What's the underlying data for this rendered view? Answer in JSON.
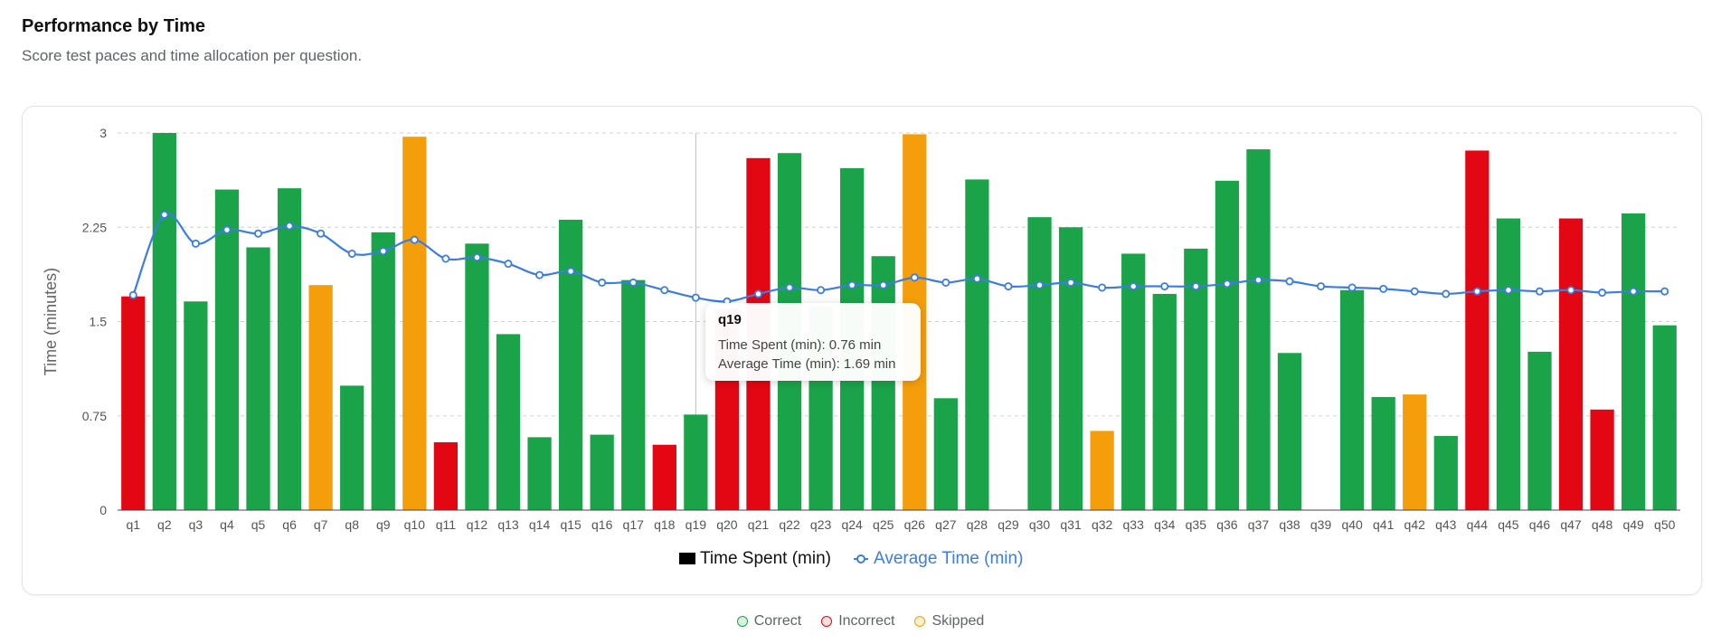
{
  "header": {
    "title": "Performance by Time",
    "subtitle": "Score test paces and time allocation per question."
  },
  "chart_data": {
    "type": "bar",
    "ylabel": "Time (minutes)",
    "ylim": [
      0,
      3
    ],
    "yticks": [
      0,
      0.75,
      1.5,
      2.25,
      3
    ],
    "ytick_labels": [
      "0",
      "0.75",
      "1.5",
      "2.25",
      "3"
    ],
    "categories": [
      "q1",
      "q2",
      "q3",
      "q4",
      "q5",
      "q6",
      "q7",
      "q8",
      "q9",
      "q10",
      "q11",
      "q12",
      "q13",
      "q14",
      "q15",
      "q16",
      "q17",
      "q18",
      "q19",
      "q20",
      "q21",
      "q22",
      "q23",
      "q24",
      "q25",
      "q26",
      "q27",
      "q28",
      "q29",
      "q30",
      "q31",
      "q32",
      "q33",
      "q34",
      "q35",
      "q36",
      "q37",
      "q38",
      "q39",
      "q40",
      "q41",
      "q42",
      "q43",
      "q44",
      "q45",
      "q46",
      "q47",
      "q48",
      "q49",
      "q50"
    ],
    "series": [
      {
        "name": "Time Spent (min)",
        "kind": "bar",
        "values": [
          1.7,
          3.0,
          1.66,
          2.55,
          2.09,
          2.56,
          1.79,
          0.99,
          2.21,
          2.97,
          0.54,
          2.12,
          1.4,
          0.58,
          2.31,
          0.6,
          1.83,
          0.52,
          0.76,
          1.6,
          2.8,
          2.84,
          1.62,
          2.72,
          2.02,
          2.99,
          0.89,
          2.63,
          0,
          2.33,
          2.25,
          0.63,
          2.04,
          1.72,
          2.08,
          2.62,
          2.87,
          1.25,
          0,
          1.75,
          0.9,
          0.92,
          0.59,
          2.86,
          2.32,
          1.26,
          2.32,
          0.8,
          2.36,
          1.47
        ],
        "status": [
          "incorrect",
          "correct",
          "correct",
          "correct",
          "correct",
          "correct",
          "skipped",
          "correct",
          "correct",
          "skipped",
          "incorrect",
          "correct",
          "correct",
          "correct",
          "correct",
          "correct",
          "correct",
          "incorrect",
          "correct",
          "incorrect",
          "incorrect",
          "correct",
          "correct",
          "correct",
          "correct",
          "skipped",
          "correct",
          "correct",
          "correct",
          "correct",
          "correct",
          "skipped",
          "correct",
          "correct",
          "correct",
          "correct",
          "correct",
          "correct",
          "correct",
          "correct",
          "correct",
          "skipped",
          "correct",
          "incorrect",
          "correct",
          "correct",
          "incorrect",
          "incorrect",
          "correct",
          "correct"
        ]
      },
      {
        "name": "Average Time (min)",
        "kind": "line",
        "values": [
          1.71,
          2.35,
          2.12,
          2.23,
          2.2,
          2.26,
          2.2,
          2.04,
          2.06,
          2.15,
          2.0,
          2.01,
          1.96,
          1.87,
          1.9,
          1.81,
          1.81,
          1.75,
          1.69,
          1.66,
          1.72,
          1.77,
          1.75,
          1.79,
          1.79,
          1.85,
          1.81,
          1.84,
          1.78,
          1.79,
          1.81,
          1.77,
          1.78,
          1.78,
          1.78,
          1.8,
          1.83,
          1.82,
          1.78,
          1.77,
          1.76,
          1.74,
          1.72,
          1.74,
          1.75,
          1.74,
          1.75,
          1.73,
          1.74,
          1.74
        ]
      }
    ],
    "colors": {
      "correct": "#1ba34a",
      "incorrect": "#e30613",
      "skipped": "#f59e0b",
      "line": "#3b7de0"
    },
    "legend": [
      "Time Spent (min)",
      "Average Time (min)"
    ],
    "hover_category": "q19"
  },
  "tooltip": {
    "title": "q19",
    "time_spent": "Time Spent (min): 0.76 min",
    "average_time": "Average Time (min): 1.69 min"
  },
  "status_legend": [
    {
      "label": "Correct",
      "fill": "#d7f3df",
      "stroke": "#1ba34a"
    },
    {
      "label": "Incorrect",
      "fill": "#fde0e0",
      "stroke": "#e30613"
    },
    {
      "label": "Skipped",
      "fill": "#fdf0cf",
      "stroke": "#f59e0b"
    }
  ]
}
